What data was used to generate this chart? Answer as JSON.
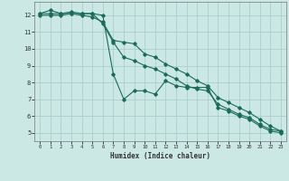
{
  "xlabel": "Humidex (Indice chaleur)",
  "xlim": [
    -0.5,
    23.5
  ],
  "ylim": [
    4.5,
    12.8
  ],
  "yticks": [
    5,
    6,
    7,
    8,
    9,
    10,
    11,
    12
  ],
  "xticks": [
    0,
    1,
    2,
    3,
    4,
    5,
    6,
    7,
    8,
    9,
    10,
    11,
    12,
    13,
    14,
    15,
    16,
    17,
    18,
    19,
    20,
    21,
    22,
    23
  ],
  "bg_color": "#cce8e4",
  "grid_color": "#aacfca",
  "line_color": "#1a6b5a",
  "series": [
    [
      12.1,
      12.3,
      12.1,
      12.1,
      12.1,
      12.1,
      12.0,
      8.5,
      7.0,
      7.5,
      7.5,
      7.3,
      8.1,
      7.8,
      7.7,
      7.7,
      7.7,
      6.5,
      6.3,
      6.0,
      5.8,
      5.4,
      5.1,
      5.0
    ],
    [
      12.1,
      12.1,
      12.1,
      12.2,
      12.1,
      12.1,
      11.5,
      10.4,
      9.5,
      9.3,
      9.0,
      8.8,
      8.5,
      8.2,
      7.8,
      7.6,
      7.5,
      6.7,
      6.4,
      6.1,
      5.9,
      5.5,
      5.2,
      5.1
    ],
    [
      12.0,
      12.0,
      12.0,
      12.1,
      12.0,
      11.9,
      11.6,
      10.5,
      10.4,
      10.3,
      9.7,
      9.5,
      9.1,
      8.8,
      8.5,
      8.1,
      7.8,
      7.1,
      6.8,
      6.5,
      6.2,
      5.8,
      5.4,
      5.1
    ]
  ]
}
